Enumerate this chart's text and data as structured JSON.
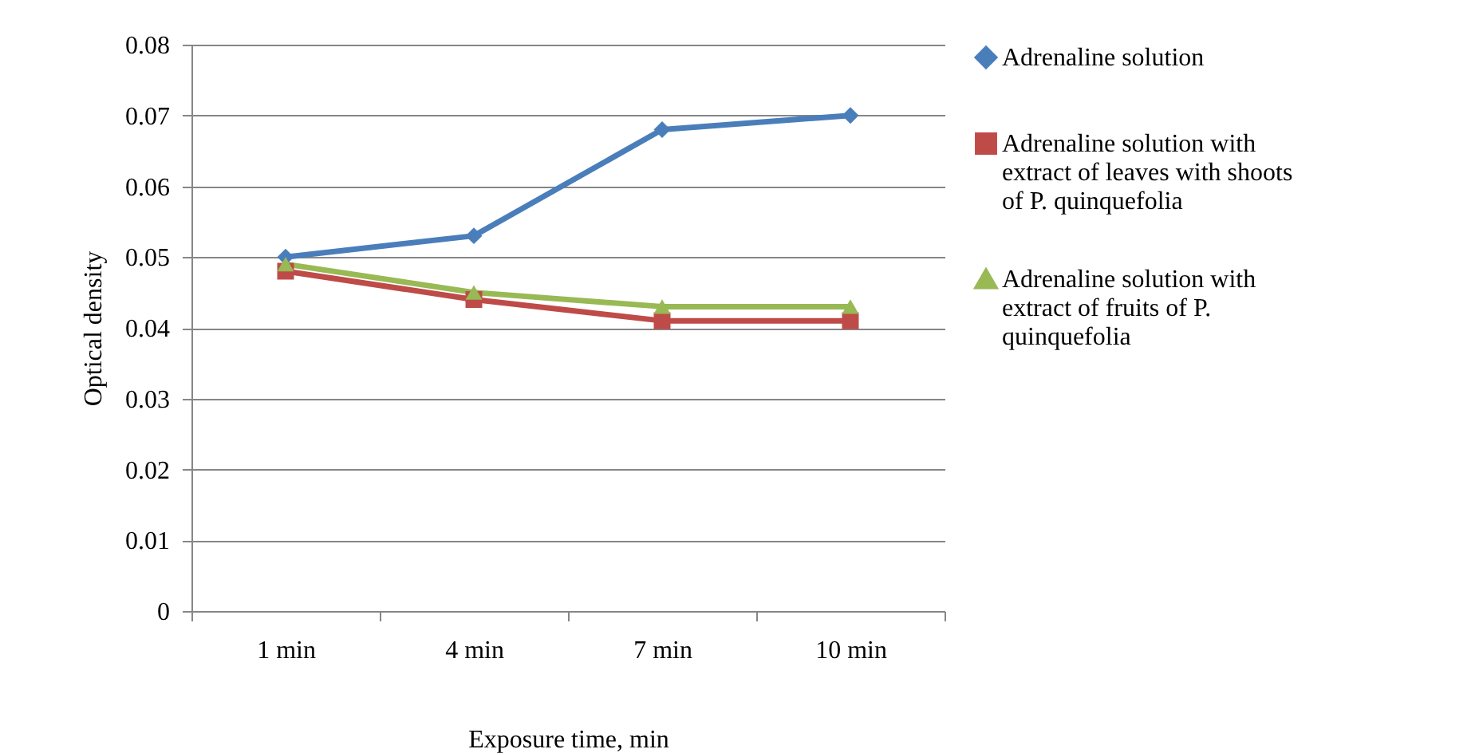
{
  "chart_data": {
    "type": "line",
    "xlabel": "Exposure time, min",
    "ylabel": "Optical density",
    "categories": [
      "1 min",
      "4 min",
      "7 min",
      "10 min"
    ],
    "series": [
      {
        "name": "Adrenaline solution",
        "color": "#4a7ebb",
        "marker": "diamond",
        "values": [
          0.05,
          0.053,
          0.068,
          0.07
        ]
      },
      {
        "name": "Adrenaline solution with extract of leaves with shoots of P. quinquefolia",
        "color": "#be4b48",
        "marker": "square",
        "values": [
          0.048,
          0.044,
          0.041,
          0.041
        ]
      },
      {
        "name": "Adrenaline solution with extract of fruits of P. quinquefolia",
        "color": "#98b954",
        "marker": "triangle",
        "values": [
          0.049,
          0.045,
          0.043,
          0.043
        ]
      }
    ],
    "ylim": [
      0,
      0.08
    ],
    "yticks": [
      0,
      0.01,
      0.02,
      0.03,
      0.04,
      0.05,
      0.06,
      0.07,
      0.08
    ],
    "grid": "y",
    "legend": "right",
    "line_style": "solid"
  }
}
